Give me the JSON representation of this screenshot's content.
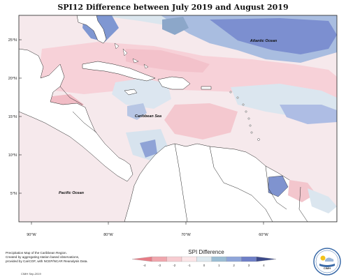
{
  "title": "SPI12 Difference between July 2019 and August 2019",
  "labels": {
    "atlantic": "Atlantic Ocean",
    "caribbean": "Caribbean Sea",
    "pacific": "Pacific Ocean"
  },
  "lat_ticks": [
    "25°N",
    "20°N",
    "15°N",
    "10°N",
    "5°N"
  ],
  "lon_ticks": [
    "90°W",
    "80°W",
    "70°W",
    "60°W"
  ],
  "legend": {
    "title": "SPI Difference",
    "ticks": [
      "-4",
      "-3",
      "-2",
      "-1",
      "0",
      "1",
      "2",
      "3",
      "4"
    ],
    "colors": [
      "#e77c86",
      "#f0a6ad",
      "#f7ccd1",
      "#fbe6e8",
      "#dde8ee",
      "#9bbdd4",
      "#8fa5d9",
      "#6e7fc7",
      "#3d4a8a"
    ]
  },
  "footnote": {
    "line1": "Precipitation Map of the Caribbean Region.",
    "line2": "Created by aggregating station based observations,",
    "line3": "provided by CariCOF, with NCEP/NCAR Reanalysis Data.",
    "credit": "CIMH Sep-2019"
  },
  "logo_text": "CIMH"
}
